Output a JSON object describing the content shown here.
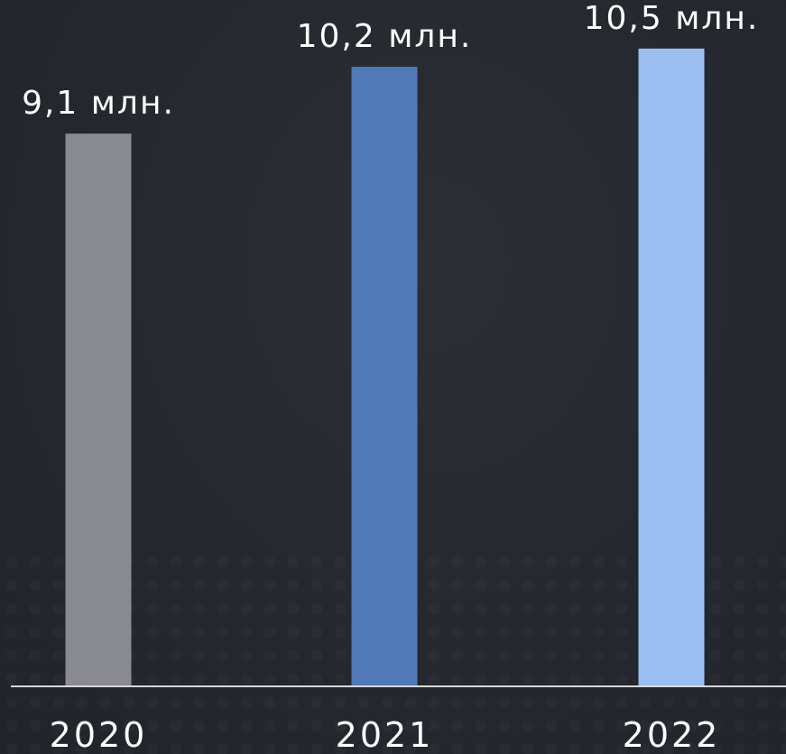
{
  "chart_data": {
    "type": "bar",
    "categories": [
      "2020",
      "2021",
      "2022"
    ],
    "values": [
      9.1,
      10.2,
      10.5
    ],
    "data_labels": [
      "9,1 млн.",
      "10,2 млн.",
      "10,5 млн."
    ],
    "colors": [
      "#8a8a92",
      "#5179b8",
      "#9bbff0"
    ],
    "title": "",
    "xlabel": "",
    "ylabel": "",
    "ylim": [
      0,
      11.3
    ],
    "grid": false,
    "legend": "none"
  },
  "style": {
    "axis_color": "#d9d9d9",
    "text_color": "#ffffff",
    "background": "#24272e"
  }
}
